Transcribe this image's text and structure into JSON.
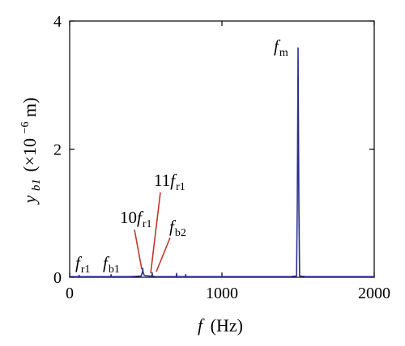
{
  "chart_data": {
    "type": "line",
    "title": "",
    "xlabel": {
      "main": "f",
      "unit": "(Hz)"
    },
    "ylabel": {
      "main": "y",
      "sub": "b1",
      "unit_prefix": "(×10",
      "unit_exp": "−6",
      "unit_suffix": "m)"
    },
    "xlim": [
      0,
      2000
    ],
    "ylim": [
      0,
      4
    ],
    "x_ticks": [
      0,
      1000,
      2000
    ],
    "x_tick_labels": [
      "0",
      "1000",
      "2000"
    ],
    "y_ticks": [
      0,
      2,
      4
    ],
    "y_tick_labels": [
      "0",
      "2",
      "4"
    ],
    "grid": false,
    "series": [
      {
        "color": "#2b2f8e",
        "x": [
          0,
          60,
          62,
          64,
          120,
          270,
          272,
          274,
          400,
          470,
          478,
          480,
          482,
          490,
          520,
          540,
          542,
          544,
          560,
          700,
          702,
          704,
          760,
          762,
          764,
          800,
          1450,
          1490,
          1495,
          1500,
          1505,
          1510,
          1550,
          2000
        ],
        "y": [
          0.01,
          0.01,
          0.03,
          0.01,
          0.01,
          0.01,
          0.04,
          0.01,
          0.01,
          0.02,
          0.08,
          0.14,
          0.08,
          0.03,
          0.02,
          0.02,
          0.07,
          0.02,
          0.01,
          0.01,
          0.06,
          0.01,
          0.01,
          0.04,
          0.01,
          0.01,
          0.01,
          0.02,
          1.2,
          3.58,
          1.2,
          0.02,
          0.01,
          0.01
        ]
      }
    ],
    "annotations": [
      {
        "id": "fr1",
        "main": "f",
        "sub": "r1",
        "x": 60,
        "y": 0.03
      },
      {
        "id": "fb1",
        "main": "f",
        "sub": "b1",
        "x": 270,
        "y": 0.04
      },
      {
        "id": "10fr1",
        "prefix": "10",
        "main": "f",
        "sub": "r1",
        "x": 480,
        "y": 0.14
      },
      {
        "id": "11fr1",
        "prefix": "11",
        "main": "f",
        "sub": "r1",
        "x": 542,
        "y": 0.07
      },
      {
        "id": "fb2",
        "main": "f",
        "sub": "b2",
        "x": 560,
        "y": 0.02
      },
      {
        "id": "fm",
        "main": "f",
        "sub": "m",
        "x": 1500,
        "y": 3.58
      }
    ]
  }
}
